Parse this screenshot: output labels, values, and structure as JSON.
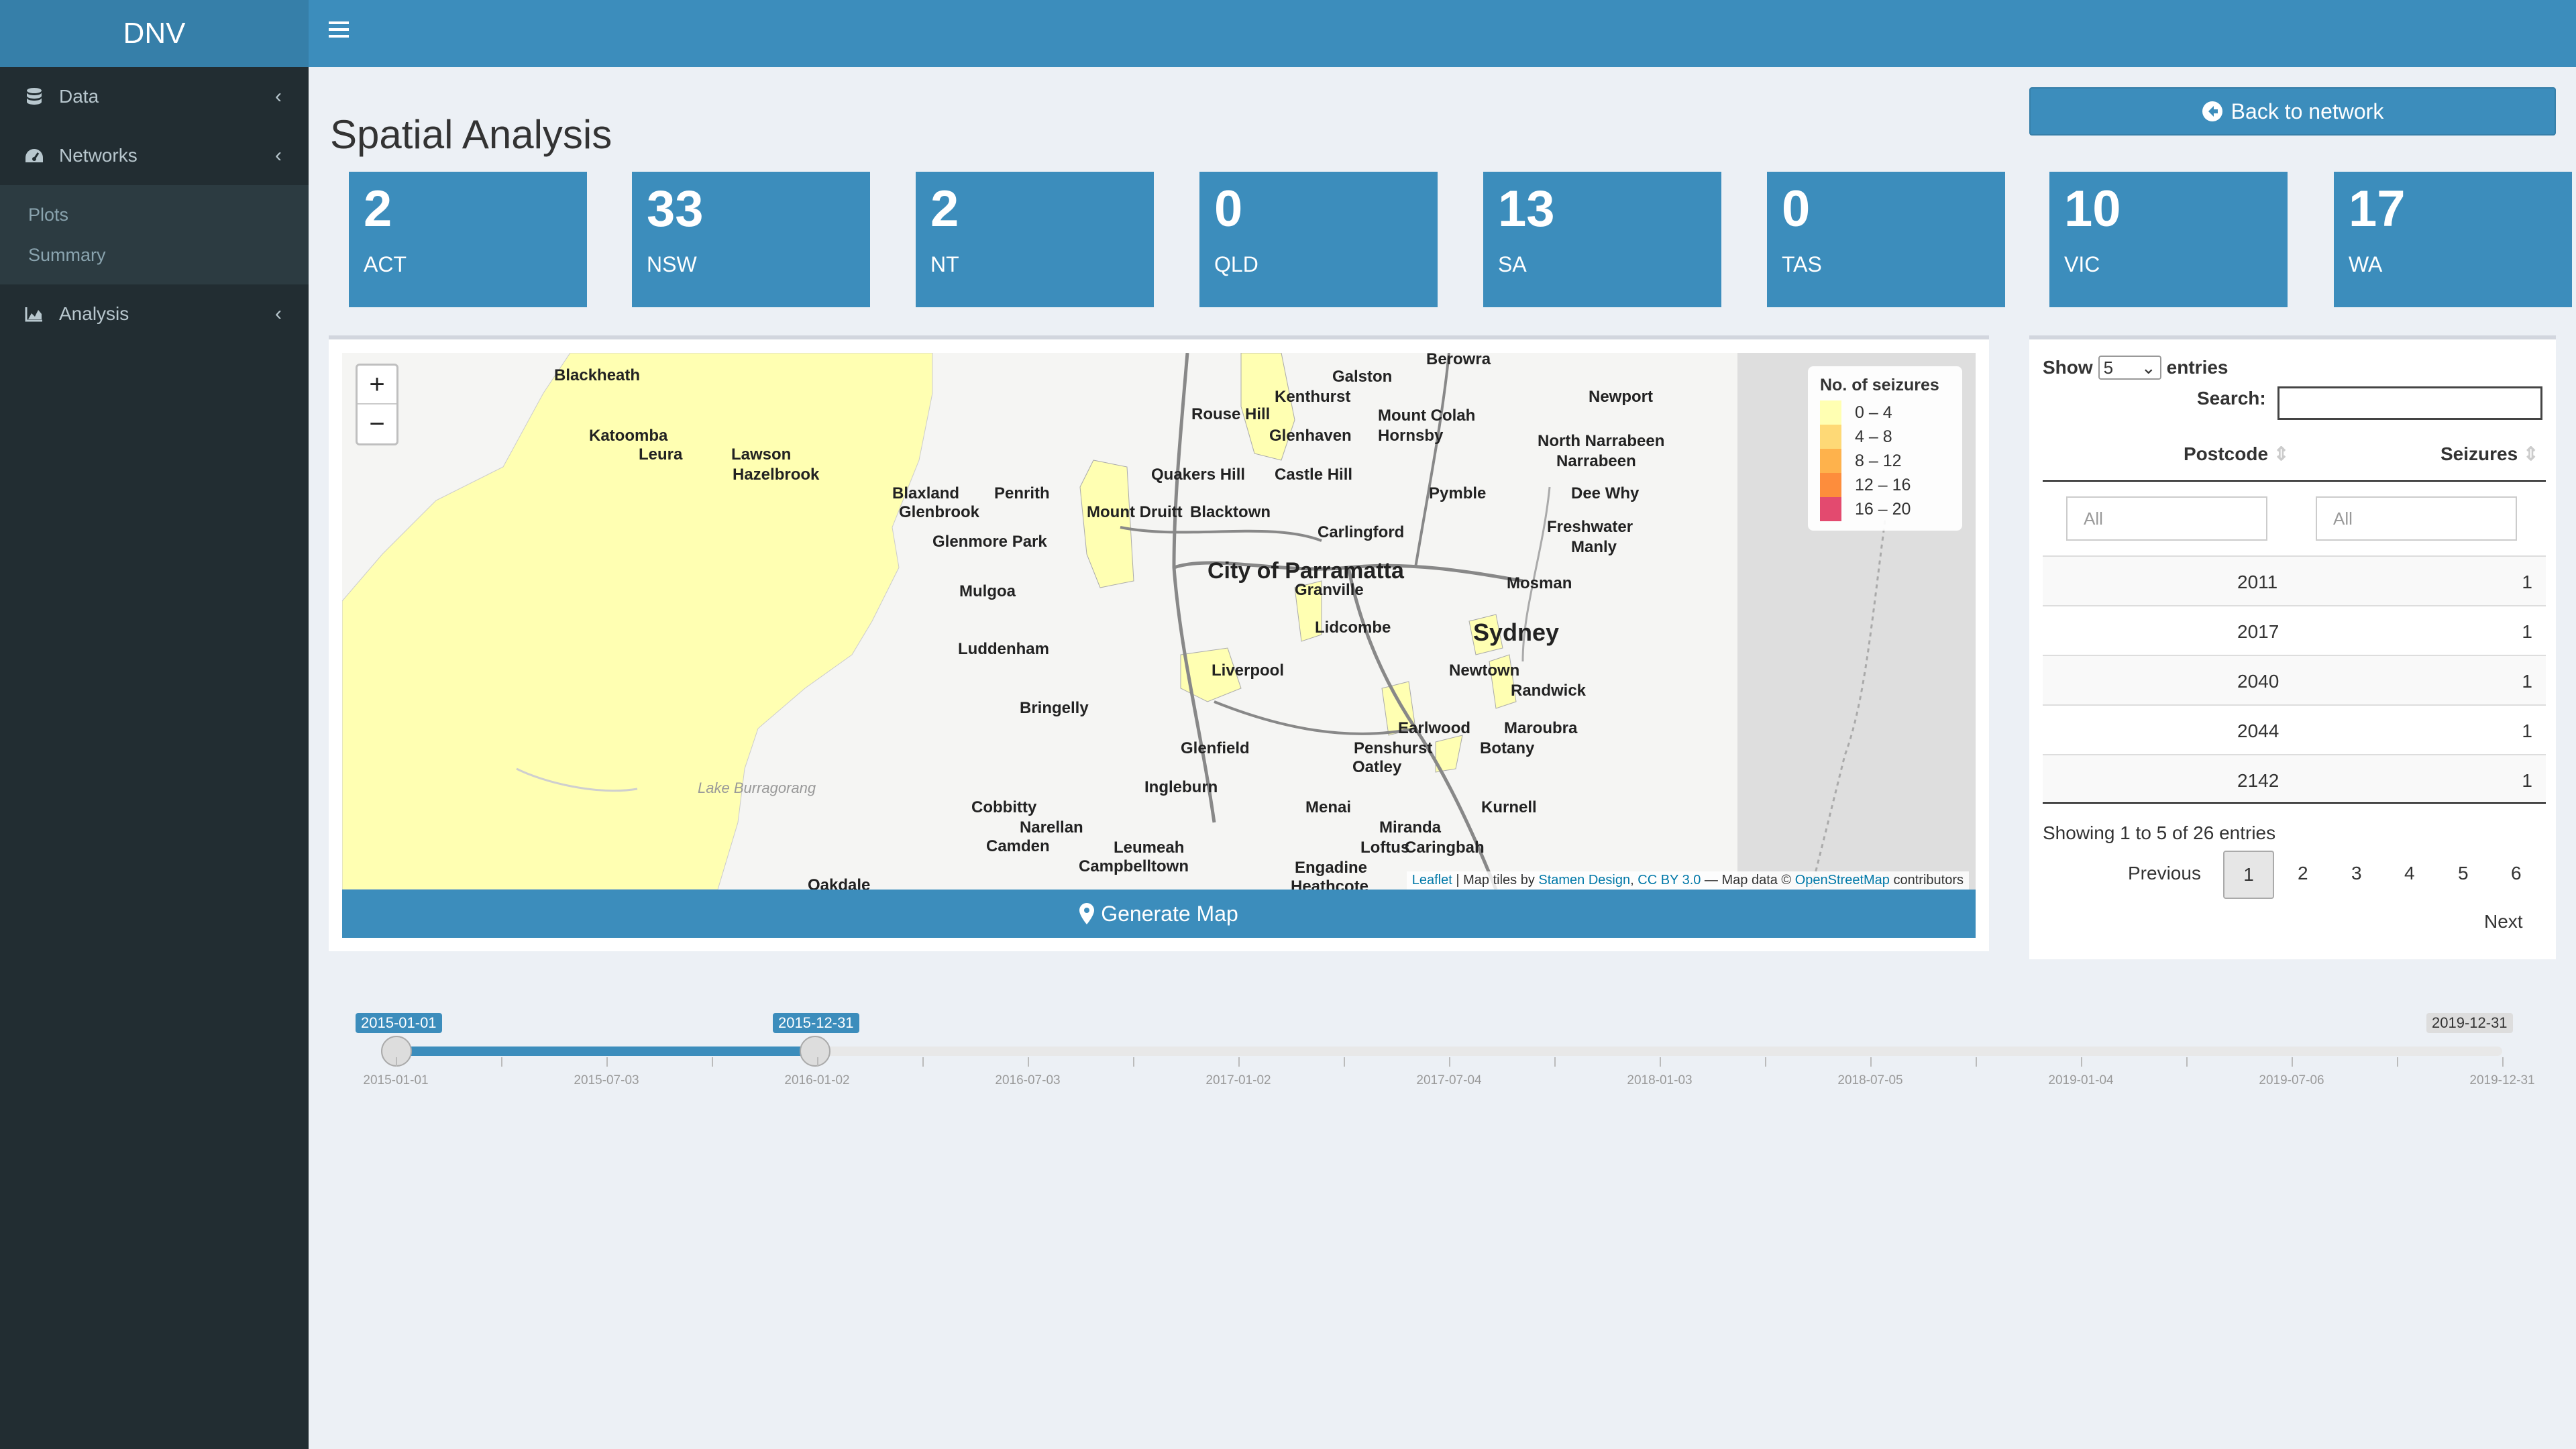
{
  "app": {
    "logo": "DNV"
  },
  "sidebar": {
    "items": [
      {
        "label": "Data",
        "icon": "database-icon"
      },
      {
        "label": "Networks",
        "icon": "dashboard-icon"
      },
      {
        "label": "Analysis",
        "icon": "area-chart-icon"
      }
    ],
    "submenu": [
      "Plots",
      "Summary"
    ]
  },
  "page": {
    "title": "Spatial Analysis",
    "back_label": "Back to network",
    "generate_label": "Generate Map"
  },
  "state_boxes": [
    {
      "num": "2",
      "label": "ACT"
    },
    {
      "num": "33",
      "label": "NSW"
    },
    {
      "num": "2",
      "label": "NT"
    },
    {
      "num": "0",
      "label": "QLD"
    },
    {
      "num": "13",
      "label": "SA"
    },
    {
      "num": "0",
      "label": "TAS"
    },
    {
      "num": "10",
      "label": "VIC"
    },
    {
      "num": "17",
      "label": "WA"
    }
  ],
  "map": {
    "legend_title": "No. of seizures",
    "legend": [
      {
        "label": "0 – 4",
        "color": "#ffffb2"
      },
      {
        "label": "4 – 8",
        "color": "#fed976"
      },
      {
        "label": "8 – 12",
        "color": "#feb24c"
      },
      {
        "label": "12 – 16",
        "color": "#fd8d3c"
      },
      {
        "label": "16 – 20",
        "color": "#e34a6f"
      }
    ],
    "attribution": {
      "leaflet": "Leaflet",
      "tiles_pre": " | Map tiles by ",
      "stamen": "Stamen Design",
      "sep": ", ",
      "cc": "CC BY 3.0",
      "data_pre": " — Map data © ",
      "osm": "OpenStreetMap",
      "post": " contributors"
    },
    "places": [
      "Blackheath",
      "Katoomba",
      "Leura",
      "Lawson",
      "Hazelbrook",
      "Blaxland",
      "Glenbrook",
      "Penrith",
      "Glenmore Park",
      "Mulgoa",
      "Luddenham",
      "Bringelly",
      "Cobbitty",
      "Narellan",
      "Camden",
      "Oakdale",
      "Lake Burragorang",
      "Galston",
      "Berowra",
      "Kenthurst",
      "Rouse Hill",
      "Glenhaven",
      "Mount Colah",
      "Hornsby",
      "Newport",
      "North Narrabeen",
      "Narrabeen",
      "Dee Why",
      "Freshwater",
      "Manly",
      "Quakers Hill",
      "Mount Druitt",
      "Blacktown",
      "Castle Hill",
      "Pymble",
      "Carlingford",
      "City of Parramatta",
      "Granville",
      "Lidcombe",
      "Sydney",
      "Mosman",
      "Newtown",
      "Randwick",
      "Liverpool",
      "Earlwood",
      "Penshurst",
      "Oatley",
      "Maroubra",
      "Botany",
      "Glenfield",
      "Ingleburn",
      "Leumeah",
      "Campbelltown",
      "Menai",
      "Miranda",
      "Loftus",
      "Caringbah",
      "Kurnell",
      "Engadine",
      "Heathcote"
    ]
  },
  "table": {
    "show_label": "Show",
    "entries_label": "entries",
    "page_size": "5",
    "search_label": "Search:",
    "search_value": "",
    "columns": [
      "Postcode",
      "Seizures"
    ],
    "filter_placeholder": "All",
    "rows": [
      {
        "postcode": "2011",
        "seizures": "1"
      },
      {
        "postcode": "2017",
        "seizures": "1"
      },
      {
        "postcode": "2040",
        "seizures": "1"
      },
      {
        "postcode": "2044",
        "seizures": "1"
      },
      {
        "postcode": "2142",
        "seizures": "1"
      }
    ],
    "info": "Showing 1 to 5 of 26 entries",
    "prev": "Previous",
    "next": "Next",
    "pages": [
      "1",
      "2",
      "3",
      "4",
      "5",
      "6"
    ]
  },
  "slider": {
    "from": "2015-01-01",
    "to": "2015-12-31",
    "max": "2019-12-31",
    "ticks": [
      "2015-01-01",
      "2015-07-03",
      "2016-01-02",
      "2016-07-03",
      "2017-01-02",
      "2017-07-04",
      "2018-01-03",
      "2018-07-05",
      "2019-01-04",
      "2019-07-06",
      "2019-12-31"
    ]
  }
}
